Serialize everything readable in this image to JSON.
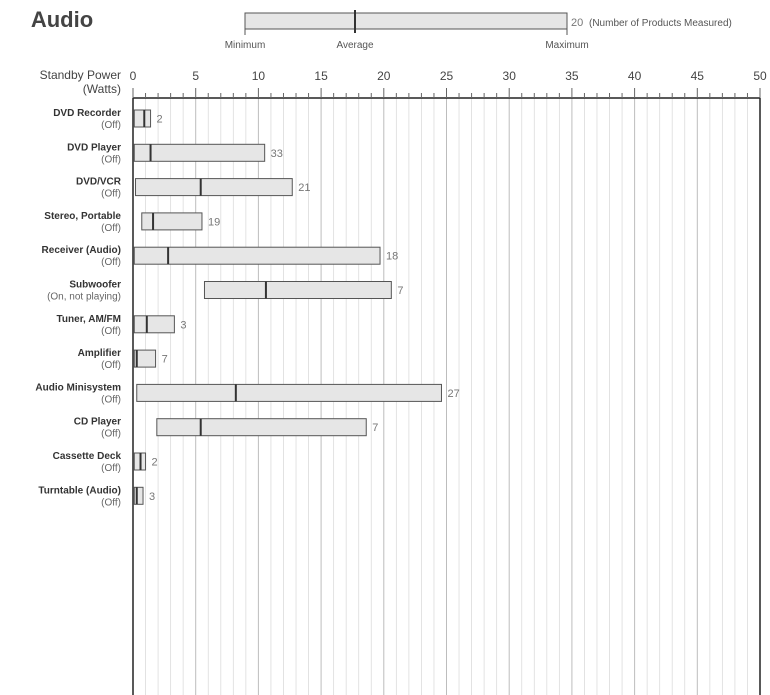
{
  "chart_data": {
    "type": "range-bar",
    "title": "Audio",
    "xlabel": "Standby Power\n(Watts)",
    "xlim": [
      0,
      50
    ],
    "x_ticks": [
      0,
      5,
      10,
      15,
      20,
      25,
      30,
      35,
      40,
      45,
      50
    ],
    "grid": true,
    "legend": {
      "minimum": "Minimum",
      "average": "Average",
      "maximum": "Maximum",
      "count_example": "20",
      "count_label": "(Number of Products Measured)"
    },
    "series": [
      {
        "product": "DVD Recorder",
        "mode": "(Off)",
        "min": 0.1,
        "avg": 0.9,
        "max": 1.4,
        "count": "2"
      },
      {
        "product": "DVD Player",
        "mode": "(Off)",
        "min": 0.1,
        "avg": 1.4,
        "max": 10.5,
        "count": "33"
      },
      {
        "product": "DVD/VCR",
        "mode": "(Off)",
        "min": 0.2,
        "avg": 5.4,
        "max": 12.7,
        "count": "21"
      },
      {
        "product": "Stereo, Portable",
        "mode": "(Off)",
        "min": 0.7,
        "avg": 1.6,
        "max": 5.5,
        "count": "19"
      },
      {
        "product": "Receiver (Audio)",
        "mode": "(Off)",
        "min": 0.1,
        "avg": 2.8,
        "max": 19.7,
        "count": "18"
      },
      {
        "product": "Subwoofer",
        "mode": "(On, not playing)",
        "min": 5.7,
        "avg": 10.6,
        "max": 20.6,
        "count": "7"
      },
      {
        "product": "Tuner, AM/FM",
        "mode": "(Off)",
        "min": 0.1,
        "avg": 1.1,
        "max": 3.3,
        "count": "3"
      },
      {
        "product": "Amplifier",
        "mode": "(Off)",
        "min": 0.1,
        "avg": 0.3,
        "max": 1.8,
        "count": "7"
      },
      {
        "product": "Audio Minisystem",
        "mode": "(Off)",
        "min": 0.3,
        "avg": 8.2,
        "max": 24.6,
        "count": "27"
      },
      {
        "product": "CD Player",
        "mode": "(Off)",
        "min": 1.9,
        "avg": 5.4,
        "max": 18.6,
        "count": "7"
      },
      {
        "product": "Cassette Deck",
        "mode": "(Off)",
        "min": 0.1,
        "avg": 0.6,
        "max": 1.0,
        "count": "2"
      },
      {
        "product": "Turntable (Audio)",
        "mode": "(Off)",
        "min": 0.1,
        "avg": 0.3,
        "max": 0.8,
        "count": "3"
      }
    ]
  },
  "colors": {
    "bar_fill": "#e6e6e6",
    "bar_stroke": "#555555",
    "average_marker": "#333333",
    "grid_major": "#bdbdbd",
    "grid_minor": "#dcdcdc",
    "frame": "#222222",
    "count_text": "#777777"
  }
}
